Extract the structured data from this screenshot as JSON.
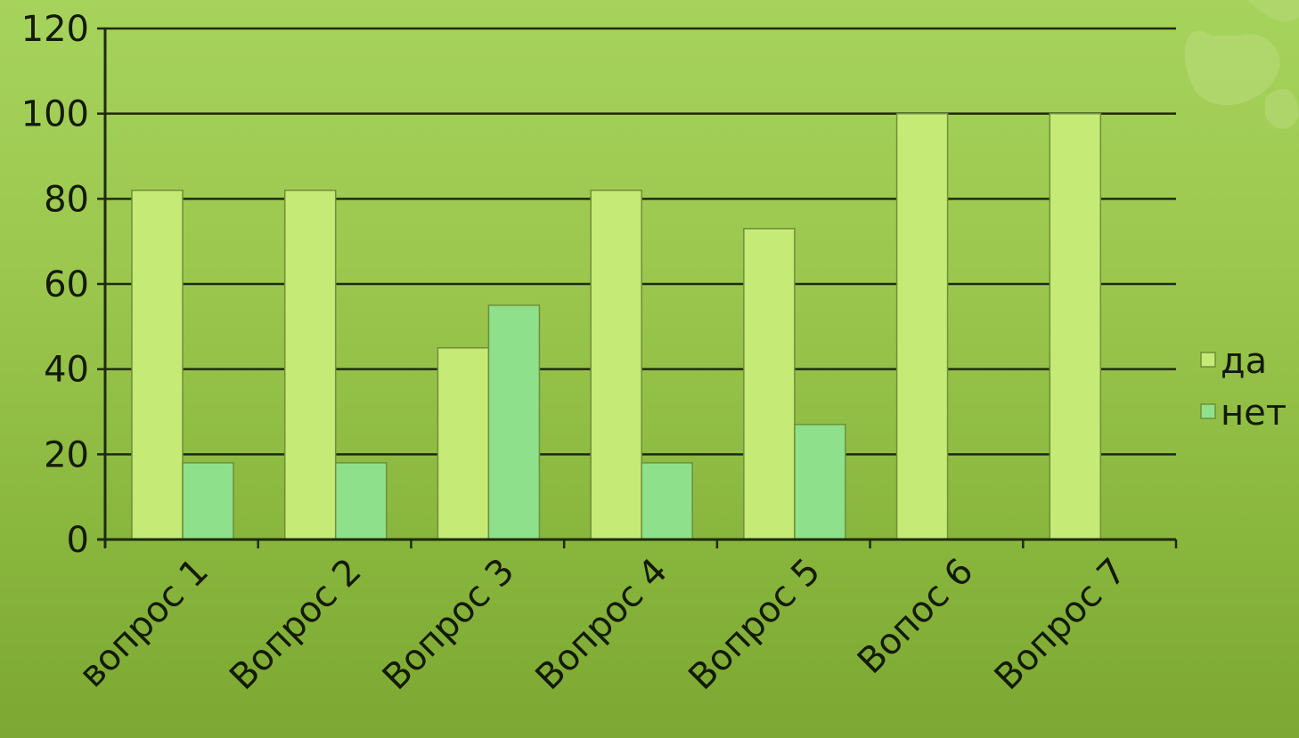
{
  "chart_data": {
    "type": "bar",
    "title": "",
    "xlabel": "",
    "ylabel": "",
    "ylim": [
      0,
      120
    ],
    "yticks": [
      0,
      20,
      40,
      60,
      80,
      100,
      120
    ],
    "grid": true,
    "legend_position": "right",
    "categories": [
      "вопрос 1",
      "Вопрос 2",
      "Вопрос 3",
      "Вопрос 4",
      "Вопрос 5",
      "Вопос 6",
      "Вопрос 7"
    ],
    "series": [
      {
        "name": "да",
        "values": [
          82,
          82,
          45,
          82,
          73,
          100,
          100
        ],
        "color": "#c5ea76"
      },
      {
        "name": "нет",
        "values": [
          18,
          18,
          55,
          18,
          27,
          0,
          0
        ],
        "color": "#8ee08a"
      }
    ]
  }
}
